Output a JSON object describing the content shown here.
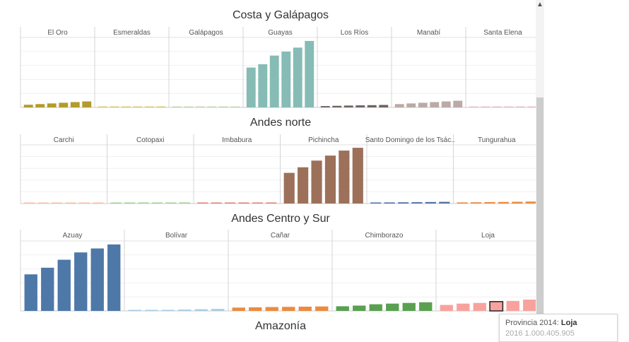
{
  "panels": [
    {
      "title": "Costa y Galápagos",
      "provinces": [
        {
          "name": "El Oro",
          "color": "#b39b2c",
          "values": [
            4,
            5,
            6,
            7,
            8,
            9
          ]
        },
        {
          "name": "Esmeraldas",
          "color": "#d9cb7c",
          "values": [
            1,
            1.2,
            1.3,
            1.4,
            1.5,
            1.6
          ]
        },
        {
          "name": "Galápagos",
          "color": "#c9d9b8",
          "values": [
            0.1,
            0.1,
            0.1,
            0.1,
            0.1,
            0.1
          ]
        },
        {
          "name": "Guayas",
          "color": "#86bcb5",
          "values": [
            60,
            65,
            78,
            84,
            90,
            100
          ]
        },
        {
          "name": "Los Ríos",
          "color": "#6d6361",
          "values": [
            2,
            2.4,
            2.8,
            3.1,
            3.4,
            3.7
          ]
        },
        {
          "name": "Manabí",
          "color": "#bcaaa7",
          "values": [
            5,
            6,
            7,
            8,
            9,
            10
          ]
        },
        {
          "name": "Santa Elena",
          "color": "#e7c5c9",
          "values": [
            0.4,
            0.5,
            0.6,
            0.6,
            0.7,
            0.8
          ]
        }
      ]
    },
    {
      "title": "Andes norte",
      "provinces": [
        {
          "name": "Carchi",
          "color": "#f6c3a8",
          "values": [
            0.5,
            0.6,
            0.7,
            0.8,
            0.9,
            1
          ]
        },
        {
          "name": "Cotopaxi",
          "color": "#a6d294",
          "values": [
            1,
            1.1,
            1.3,
            1.5,
            1.8,
            2
          ]
        },
        {
          "name": "Imbabura",
          "color": "#e2837b",
          "values": [
            1,
            1.1,
            1.2,
            1.4,
            1.6,
            1.8
          ]
        },
        {
          "name": "Pichincha",
          "color": "#9c7059",
          "values": [
            55,
            65,
            77,
            86,
            95,
            100
          ]
        },
        {
          "name": "Santo Domingo de los Tsác..",
          "color": "#5373a8",
          "values": [
            1.8,
            2,
            2.2,
            2.4,
            2.7,
            3
          ]
        },
        {
          "name": "Tungurahua",
          "color": "#ec8b3f",
          "values": [
            2,
            2.2,
            2.5,
            2.8,
            3.1,
            3.5
          ]
        }
      ]
    },
    {
      "title": "Andes Centro y Sur",
      "provinces": [
        {
          "name": "Azuay",
          "color": "#4e78a8",
          "values": [
            55,
            65,
            77,
            88,
            94,
            100
          ]
        },
        {
          "name": "Bolívar",
          "color": "#a9cce3",
          "values": [
            1,
            1.2,
            1.5,
            2,
            2.5,
            3
          ]
        },
        {
          "name": "Cañar",
          "color": "#ec8b3f",
          "values": [
            5,
            5.4,
            5.8,
            6.1,
            6.4,
            6.7
          ]
        },
        {
          "name": "Chimborazo",
          "color": "#5aa051",
          "values": [
            7,
            8,
            10,
            11,
            12,
            13
          ]
        },
        {
          "name": "Loja",
          "color": "#f8a29e",
          "values": [
            9,
            11,
            12,
            14,
            15,
            17
          ],
          "highlight": 3
        }
      ]
    },
    {
      "title": "Amazonía",
      "provinces": []
    }
  ],
  "tooltip": {
    "label": "Provincia 2014:",
    "value": "Loja",
    "row2_label": "2016",
    "row2_value": "1.000.405.905"
  },
  "scroll_arrow": "▲"
}
